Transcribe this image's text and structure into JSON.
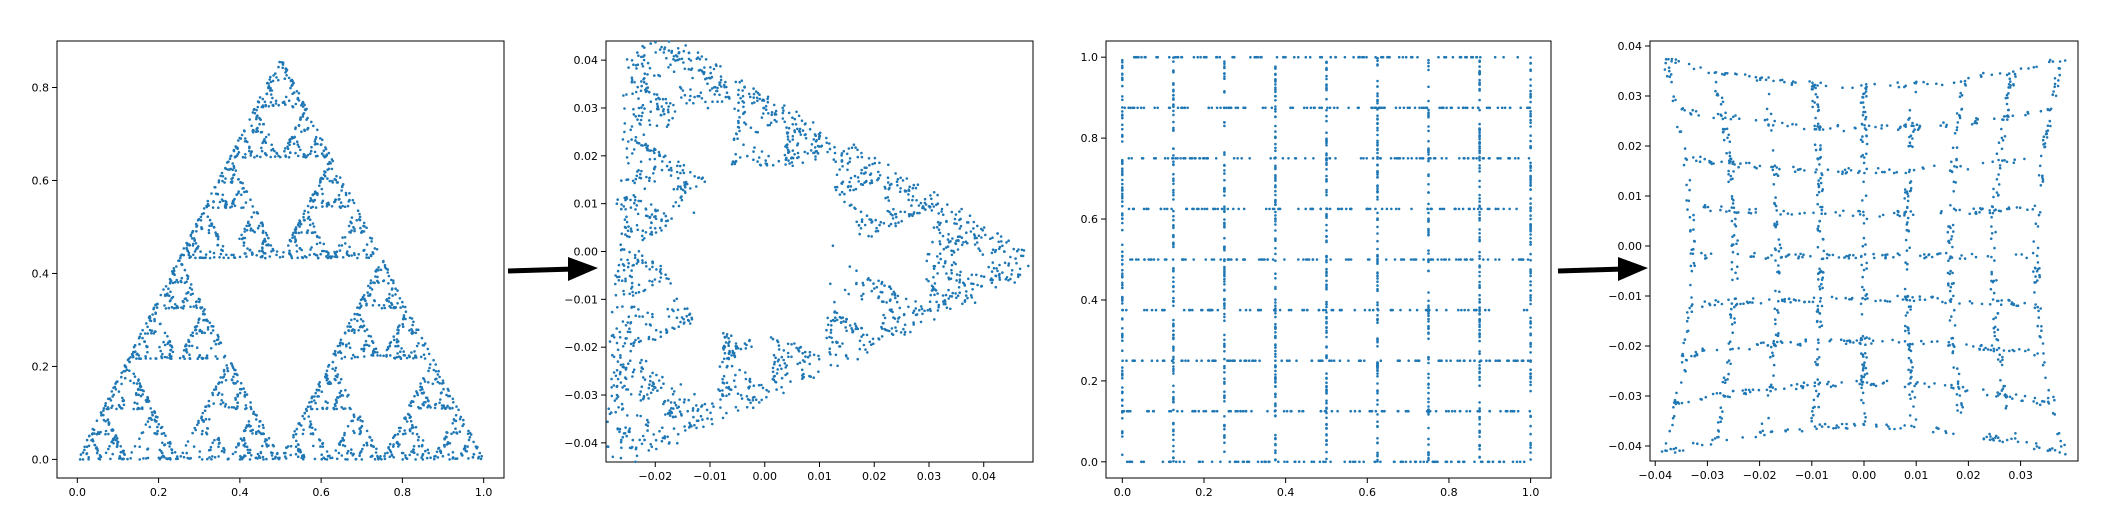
{
  "colors": {
    "points": "#1f77b4",
    "arrow": "#000000",
    "axes": "#000000",
    "background": "#ffffff"
  },
  "chart_data": [
    {
      "type": "scatter",
      "name": "sierpinski-triangle",
      "title": "",
      "xlabel": "",
      "ylabel": "",
      "xlim": [
        -0.05,
        1.05
      ],
      "ylim": [
        -0.04,
        0.9
      ],
      "xticks": [
        "0.0",
        "0.2",
        "0.4",
        "0.6",
        "0.8",
        "1.0"
      ],
      "yticks": [
        "0.0",
        "0.2",
        "0.4",
        "0.6",
        "0.8"
      ],
      "xtick_values": [
        0,
        0.2,
        0.4,
        0.6,
        0.8,
        1.0
      ],
      "ytick_values": [
        0,
        0.2,
        0.4,
        0.6,
        0.8
      ],
      "grid": false,
      "legend": "none",
      "generator": "sierpinski",
      "vertices": [
        [
          0,
          0
        ],
        [
          1,
          0
        ],
        [
          0.5,
          0.866
        ]
      ],
      "point_count": 2200
    },
    {
      "type": "scatter",
      "name": "warped-triangle",
      "title": "",
      "xlabel": "",
      "ylabel": "",
      "xlim": [
        -0.029,
        0.049
      ],
      "ylim": [
        -0.044,
        0.044
      ],
      "xticks": [
        "−0.02",
        "−0.01",
        "0.00",
        "0.01",
        "0.02",
        "0.03",
        "0.04"
      ],
      "yticks": [
        "−0.04",
        "−0.03",
        "−0.02",
        "−0.01",
        "0.00",
        "0.01",
        "0.02",
        "0.03",
        "0.04"
      ],
      "xtick_values": [
        -0.02,
        -0.01,
        0,
        0.01,
        0.02,
        0.03,
        0.04
      ],
      "ytick_values": [
        -0.04,
        -0.03,
        -0.02,
        -0.01,
        0,
        0.01,
        0.02,
        0.03,
        0.04
      ],
      "grid": false,
      "legend": "none",
      "generator": "warped-triangle",
      "vertices": [
        [
          -0.021,
          0.042
        ],
        [
          -0.025,
          -0.04
        ],
        [
          0.045,
          -0.002
        ]
      ],
      "point_count": 2000
    },
    {
      "type": "scatter",
      "name": "grid-lines",
      "title": "",
      "xlabel": "",
      "ylabel": "",
      "xlim": [
        -0.04,
        1.05
      ],
      "ylim": [
        -0.04,
        1.04
      ],
      "xticks": [
        "0.0",
        "0.2",
        "0.4",
        "0.6",
        "0.8",
        "1.0"
      ],
      "yticks": [
        "0.0",
        "0.2",
        "0.4",
        "0.6",
        "0.8",
        "1.0"
      ],
      "xtick_values": [
        0,
        0.2,
        0.4,
        0.6,
        0.8,
        1.0
      ],
      "ytick_values": [
        0,
        0.2,
        0.4,
        0.6,
        0.8,
        1.0
      ],
      "grid": false,
      "legend": "none",
      "generator": "grid",
      "line_positions": [
        0,
        0.125,
        0.25,
        0.375,
        0.5,
        0.625,
        0.75,
        0.875,
        1.0
      ],
      "point_count": 1800
    },
    {
      "type": "scatter",
      "name": "warped-grid",
      "title": "",
      "xlabel": "",
      "ylabel": "",
      "xlim": [
        -0.041,
        0.041
      ],
      "ylim": [
        -0.043,
        0.041
      ],
      "xticks": [
        "−0.04",
        "−0.03",
        "−0.02",
        "−0.01",
        "0.00",
        "0.01",
        "0.02",
        "0.03"
      ],
      "yticks": [
        "−0.04",
        "−0.03",
        "−0.02",
        "−0.01",
        "0.00",
        "0.01",
        "0.02",
        "0.03",
        "0.04"
      ],
      "xtick_values": [
        -0.04,
        -0.03,
        -0.02,
        -0.01,
        0,
        0.01,
        0.02,
        0.03
      ],
      "ytick_values": [
        -0.04,
        -0.03,
        -0.02,
        -0.01,
        0,
        0.01,
        0.02,
        0.03,
        0.04
      ],
      "grid": false,
      "legend": "none",
      "generator": "warped-grid",
      "point_count": 1500
    }
  ]
}
